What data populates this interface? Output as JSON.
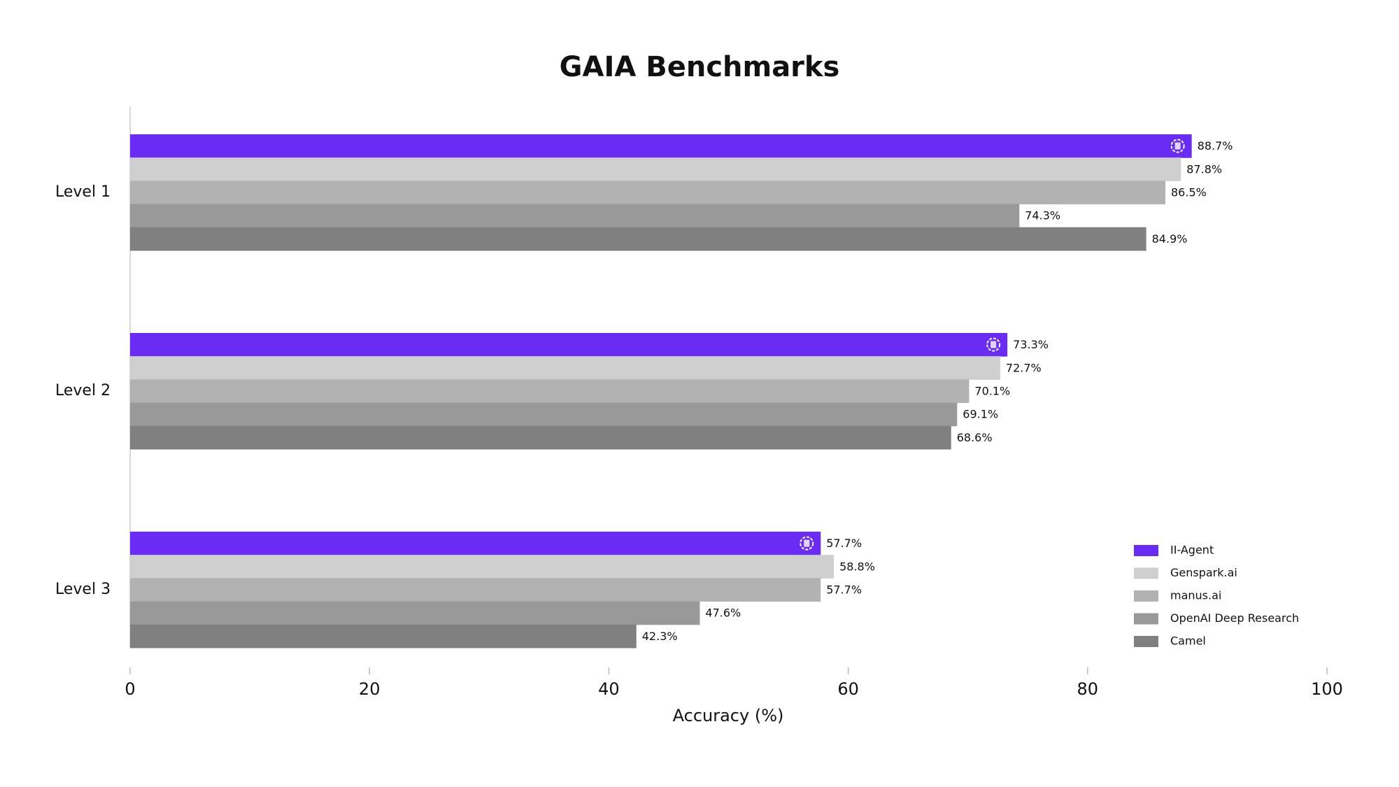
{
  "chart_data": {
    "type": "bar",
    "orientation": "horizontal",
    "title": "GAIA Benchmarks",
    "x_label": "Accuracy (%)",
    "categories": [
      "Level 1",
      "Level 2",
      "Level 3"
    ],
    "series": [
      {
        "name": "II-Agent",
        "color": "#6a2cf5",
        "values": [
          88.7,
          73.3,
          57.7
        ],
        "value_labels": [
          "88.7%",
          "73.3%",
          "57.7%"
        ]
      },
      {
        "name": "Genspark.ai",
        "color": "#d0cfd0",
        "values": [
          87.8,
          72.7,
          58.8
        ],
        "value_labels": [
          "87.8%",
          "72.7%",
          "58.8%"
        ]
      },
      {
        "name": "manus.ai",
        "color": "#b2b2b2",
        "values": [
          86.5,
          70.1,
          57.7
        ],
        "value_labels": [
          "86.5%",
          "70.1%",
          "57.7%"
        ]
      },
      {
        "name": "OpenAI Deep Research",
        "color": "#999999",
        "values": [
          74.3,
          69.1,
          47.6
        ],
        "value_labels": [
          "74.3%",
          "69.1%",
          "47.6%"
        ]
      },
      {
        "name": "Camel",
        "color": "#808080",
        "values": [
          84.9,
          68.6,
          42.3
        ],
        "value_labels": [
          "84.9%",
          "68.6%",
          "42.3%"
        ]
      }
    ],
    "xlim": [
      0,
      100
    ],
    "xticks": [
      0,
      20,
      40,
      60,
      80,
      100
    ],
    "legend": "lower right",
    "grid": false
  }
}
